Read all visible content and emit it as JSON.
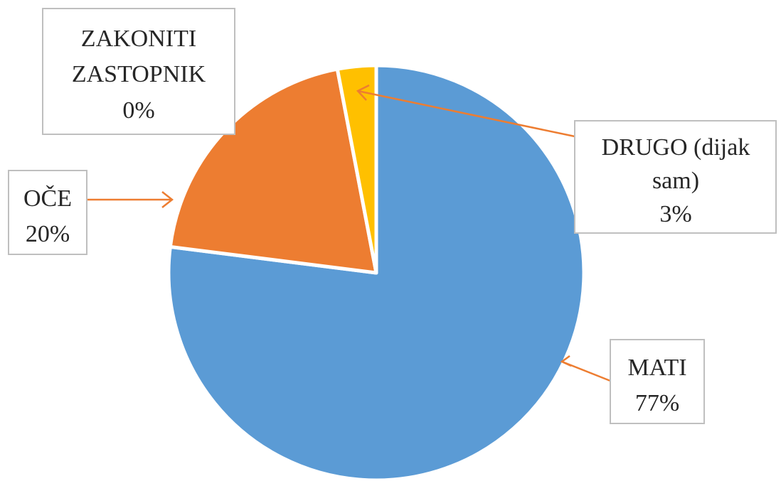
{
  "chart_data": {
    "type": "pie",
    "title": "",
    "slices": [
      {
        "label": "MATI",
        "value": 77,
        "value_label": "77%",
        "color": "#5b9bd5"
      },
      {
        "label": "OČE",
        "value": 20,
        "value_label": "20%",
        "color": "#ed7d31"
      },
      {
        "label": "ZAKONITI ZASTOPNIK",
        "value": 0,
        "value_label": "0%",
        "color": "#a5a5a5"
      },
      {
        "label": "DRUGO (dijak sam)",
        "value": 3,
        "value_label": "3%",
        "color": "#ffc000"
      }
    ],
    "legend": "none",
    "data_labels": {
      "mati": {
        "lines": [
          "MATI",
          "77%"
        ]
      },
      "oce": {
        "lines": [
          "OČE",
          "20%"
        ]
      },
      "zastopnik": {
        "lines": [
          "ZAKONITI",
          "ZASTOPNIK",
          "0%"
        ]
      },
      "drugo": {
        "lines": [
          "DRUGO (dijak",
          "sam)",
          "3%"
        ]
      }
    },
    "leader_line_color": "#ed7d31"
  }
}
